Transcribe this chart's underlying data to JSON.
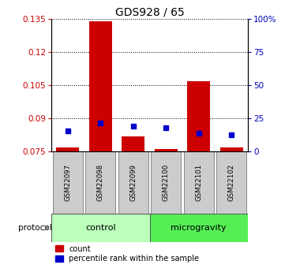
{
  "title": "GDS928 / 65",
  "samples": [
    "GSM22097",
    "GSM22098",
    "GSM22099",
    "GSM22100",
    "GSM22101",
    "GSM22102"
  ],
  "red_values": [
    0.077,
    0.134,
    0.082,
    0.0762,
    0.107,
    0.077
  ],
  "blue_values": [
    0.0845,
    0.088,
    0.0865,
    0.086,
    0.0835,
    0.0825
  ],
  "ylim": [
    0.075,
    0.135
  ],
  "yticks_left": [
    0.075,
    0.09,
    0.105,
    0.12,
    0.135
  ],
  "yticks_right": [
    0,
    25,
    50,
    75,
    100
  ],
  "groups": [
    {
      "label": "control",
      "color": "#bbffbb"
    },
    {
      "label": "microgravity",
      "color": "#55ee55"
    }
  ],
  "legend_items": [
    {
      "color": "#cc0000",
      "label": "count"
    },
    {
      "color": "#0000cc",
      "label": "percentile rank within the sample"
    }
  ],
  "bar_color": "#cc0000",
  "dot_color": "#0000cc",
  "left_axis_color": "#cc0000",
  "right_axis_color": "#0000bb",
  "sample_box_color": "#cccccc",
  "bar_width": 0.7
}
